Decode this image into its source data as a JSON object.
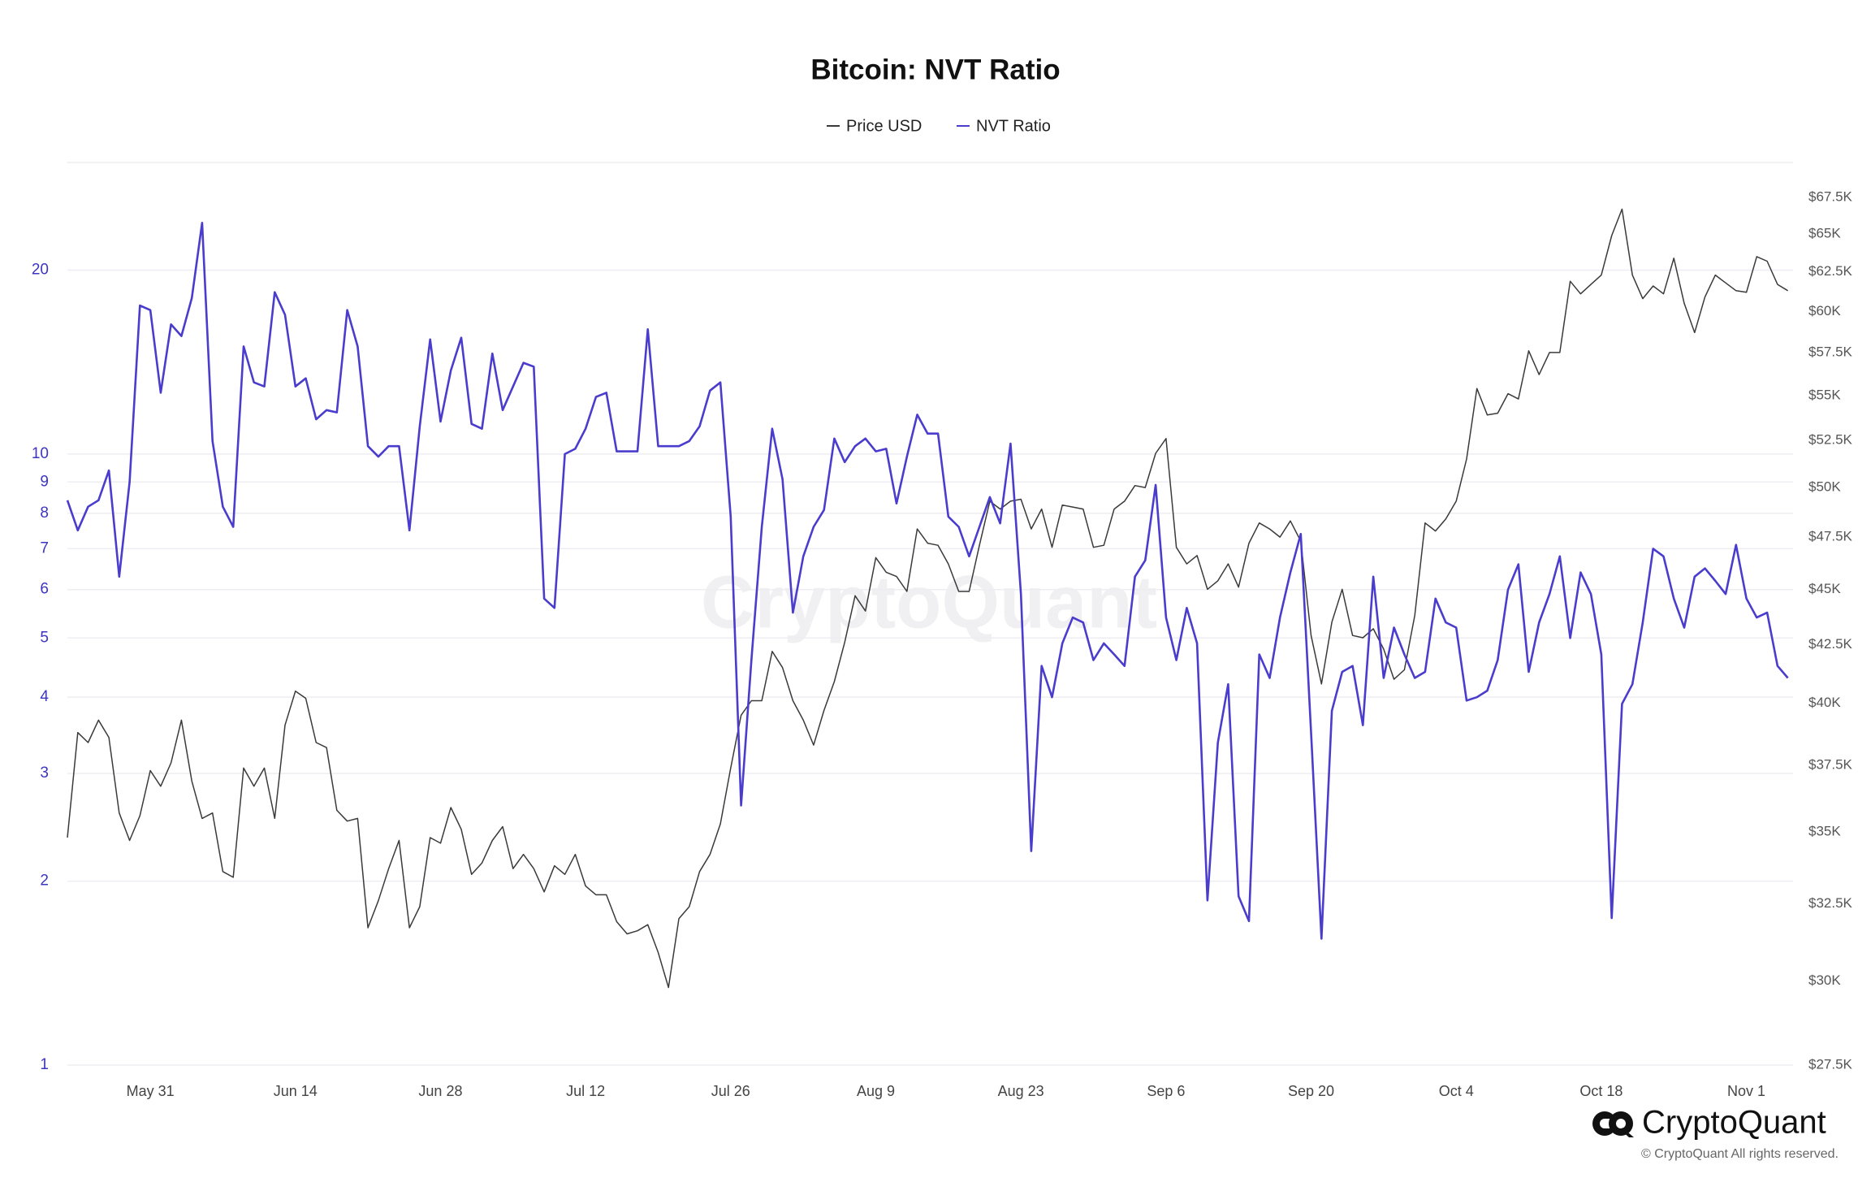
{
  "chart_data": {
    "type": "line",
    "title": "Bitcoin: NVT Ratio",
    "categories": [
      null,
      null,
      null,
      null,
      null,
      null,
      null,
      null,
      "May 31",
      null,
      null,
      null,
      null,
      null,
      null,
      null,
      null,
      null,
      null,
      null,
      null,
      null,
      "Jun 14",
      null,
      null,
      null,
      null,
      null,
      null,
      null,
      null,
      null,
      null,
      null,
      null,
      null,
      "Jun 28",
      null,
      null,
      null,
      null,
      null,
      null,
      null,
      null,
      null,
      null,
      null,
      null,
      null,
      "Jul 12",
      null,
      null,
      null,
      null,
      null,
      null,
      null,
      null,
      null,
      null,
      null,
      null,
      null,
      "Jul 26",
      null,
      null,
      null,
      null,
      null,
      null,
      null,
      null,
      null,
      null,
      null,
      null,
      null,
      "Aug 9",
      null,
      null,
      null,
      null,
      null,
      null,
      null,
      null,
      null,
      null,
      null,
      null,
      null,
      "Aug 23",
      null,
      null,
      null,
      null,
      null,
      null,
      null,
      null,
      null,
      null,
      null,
      null,
      null,
      "Sep 6",
      null,
      null,
      null,
      null,
      null,
      null,
      null,
      null,
      null,
      null,
      null,
      null,
      null,
      "Sep 20",
      null,
      null,
      null,
      null,
      null,
      null,
      null,
      null,
      null,
      null,
      null,
      null,
      null,
      "Oct 4",
      null,
      null,
      null,
      null,
      null,
      null,
      null,
      null,
      null,
      null,
      null,
      null,
      null,
      "Oct 18",
      null,
      null,
      null,
      null,
      null,
      null,
      null,
      null,
      null,
      null,
      null,
      null,
      null,
      "Nov 1",
      null,
      null,
      null,
      null
    ],
    "series": [
      {
        "name": "Price USD",
        "color": "#3a3a3a",
        "axis": "y2",
        "values": [
          34800,
          38800,
          38400,
          39300,
          38600,
          35700,
          34700,
          35600,
          37300,
          36700,
          37600,
          39300,
          36900,
          35500,
          35700,
          33600,
          33400,
          37400,
          36700,
          37400,
          35500,
          39100,
          40500,
          40200,
          38400,
          38200,
          35800,
          35400,
          35500,
          31700,
          32600,
          33700,
          34700,
          31700,
          32400,
          34800,
          34600,
          35900,
          35100,
          33500,
          33900,
          34700,
          35200,
          33700,
          34200,
          33700,
          32900,
          33800,
          33500,
          34200,
          33100,
          32800,
          32800,
          31900,
          31500,
          31600,
          31800,
          30900,
          29800,
          32000,
          32400,
          33600,
          34200,
          35300,
          37400,
          39500,
          40100,
          40100,
          42200,
          41500,
          40100,
          39300,
          38300,
          39700,
          40900,
          42600,
          44700,
          44000,
          46500,
          45800,
          45600,
          44900,
          47900,
          47200,
          47100,
          46200,
          44900,
          44900,
          47100,
          49300,
          48900,
          49300,
          49400,
          47900,
          48900,
          47000,
          49100,
          49000,
          48900,
          47000,
          47100,
          48900,
          49300,
          50100,
          50000,
          51800,
          52600,
          47000,
          46200,
          46600,
          45000,
          45400,
          46200,
          45100,
          47200,
          48200,
          47900,
          47500,
          48300,
          47300,
          42900,
          40800,
          43500,
          45000,
          42900,
          42800,
          43200,
          42300,
          41000,
          41400,
          43800,
          48200,
          47800,
          48400,
          49300,
          51500,
          55400,
          53900,
          54000,
          55100,
          54800,
          57600,
          56200,
          57500,
          57500,
          61900,
          61100,
          61700,
          62300,
          64900,
          66700,
          62300,
          60800,
          61600,
          61100,
          63400,
          60500,
          58700,
          60900,
          62300,
          61800,
          61300,
          61200,
          63500,
          63200,
          61700,
          61300
        ]
      },
      {
        "name": "NVT Ratio",
        "color": "#4a3ccc",
        "values": [
          8.4,
          7.5,
          8.2,
          8.4,
          9.4,
          6.3,
          9.0,
          17.5,
          17.2,
          12.6,
          16.3,
          15.6,
          18.0,
          23.9,
          10.5,
          8.2,
          7.6,
          15.0,
          13.1,
          12.9,
          18.4,
          16.9,
          12.9,
          13.3,
          11.4,
          11.8,
          11.7,
          17.2,
          15.0,
          10.3,
          9.9,
          10.3,
          10.3,
          7.5,
          11.1,
          15.4,
          11.3,
          13.7,
          15.5,
          11.2,
          11.0,
          14.6,
          11.8,
          12.9,
          14.1,
          13.9,
          5.8,
          5.6,
          10.0,
          10.2,
          11.0,
          12.4,
          12.6,
          10.1,
          10.1,
          10.1,
          16.0,
          10.3,
          10.3,
          10.3,
          10.5,
          11.1,
          12.7,
          13.1,
          7.9,
          2.66,
          4.6,
          7.6,
          11.0,
          9.1,
          5.5,
          6.8,
          7.6,
          8.1,
          10.6,
          9.7,
          10.3,
          10.6,
          10.1,
          10.2,
          8.3,
          9.9,
          11.6,
          10.8,
          10.8,
          7.9,
          7.6,
          6.8,
          7.6,
          8.5,
          7.7,
          10.4,
          5.9,
          2.24,
          4.5,
          4.0,
          4.9,
          5.4,
          5.3,
          4.6,
          4.9,
          4.7,
          4.5,
          6.3,
          6.7,
          8.9,
          5.4,
          4.6,
          5.6,
          4.9,
          1.86,
          3.37,
          4.2,
          1.89,
          1.72,
          4.7,
          4.3,
          5.4,
          6.4,
          7.4,
          3.5,
          1.61,
          3.8,
          4.4,
          4.5,
          3.6,
          6.3,
          4.3,
          5.2,
          4.7,
          4.3,
          4.4,
          5.8,
          5.3,
          5.2,
          3.95,
          4.0,
          4.1,
          4.6,
          6.0,
          6.6,
          4.4,
          5.3,
          5.9,
          6.8,
          5.0,
          6.4,
          5.9,
          4.7,
          1.74,
          3.9,
          4.2,
          5.3,
          7.0,
          6.8,
          5.8,
          5.2,
          6.3,
          6.5,
          6.2,
          5.9,
          7.1,
          5.8,
          5.4,
          5.5,
          4.5,
          4.3
        ]
      }
    ],
    "ylim": [
      1,
      30
    ],
    "ylog": true,
    "yticks": [
      1,
      2,
      3,
      4,
      5,
      6,
      7,
      8,
      9,
      10,
      20
    ],
    "y2lim": [
      27500,
      70000
    ],
    "y2log": true,
    "y2ticks": [
      {
        "value": 27500,
        "label": "$27.5K"
      },
      {
        "value": 30000,
        "label": "$30K"
      },
      {
        "value": 32500,
        "label": "$32.5K"
      },
      {
        "value": 35000,
        "label": "$35K"
      },
      {
        "value": 37500,
        "label": "$37.5K"
      },
      {
        "value": 40000,
        "label": "$40K"
      },
      {
        "value": 42500,
        "label": "$42.5K"
      },
      {
        "value": 45000,
        "label": "$45K"
      },
      {
        "value": 47500,
        "label": "$47.5K"
      },
      {
        "value": 50000,
        "label": "$50K"
      },
      {
        "value": 52500,
        "label": "$52.5K"
      },
      {
        "value": 55000,
        "label": "$55K"
      },
      {
        "value": 57500,
        "label": "$57.5K"
      },
      {
        "value": 60000,
        "label": "$60K"
      },
      {
        "value": 62500,
        "label": "$62.5K"
      },
      {
        "value": 65000,
        "label": "$65K"
      },
      {
        "value": 67500,
        "label": "$67.5K"
      }
    ],
    "grid": true,
    "legend": "top"
  },
  "branding": {
    "watermark": "CryptoQuant",
    "logo": "CryptoQuant",
    "copyright": "© CryptoQuant All rights reserved."
  }
}
